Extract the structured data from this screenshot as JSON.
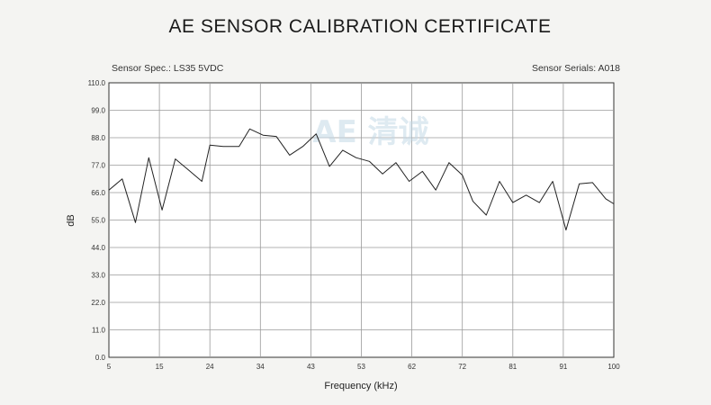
{
  "header": {
    "title": "AE SENSOR CALIBRATION CERTIFICATE",
    "sensor_spec": "Sensor Spec.: LS35 5VDC",
    "sensor_serials": "Sensor Serials: A018"
  },
  "watermark": {
    "text": "AE 清诚"
  },
  "chart_data": {
    "type": "line",
    "xlabel": "Frequency (kHz)",
    "ylabel": "dB",
    "xlim": [
      5,
      100
    ],
    "ylim": [
      0,
      110
    ],
    "grid": true,
    "x_tick_labels": [
      "5",
      "15",
      "24",
      "34",
      "43",
      "53",
      "62",
      "72",
      "81",
      "91",
      "100"
    ],
    "y_tick_labels": [
      "0.0",
      "11.0",
      "22.0",
      "33.0",
      "44.0",
      "55.0",
      "66.0",
      "77.0",
      "88.0",
      "99.0",
      "110.0"
    ],
    "series": [
      {
        "name": "",
        "x": [
          5,
          7.5,
          10,
          12.5,
          15,
          17.5,
          20,
          22.5,
          24,
          26.5,
          29.5,
          31.5,
          34,
          36.5,
          39,
          41.5,
          44,
          46.5,
          49,
          51.5,
          54,
          56.5,
          59,
          61.5,
          64,
          66.5,
          69,
          71.5,
          73.5,
          76,
          78.5,
          81,
          83.5,
          86,
          88.5,
          91,
          93.5,
          96,
          98.5,
          100
        ],
        "y": [
          67,
          71.5,
          54,
          80,
          59,
          79.5,
          75,
          70.5,
          85,
          84.5,
          84.5,
          91.5,
          89,
          88.5,
          81,
          84.5,
          89.5,
          76.5,
          83,
          80,
          78.5,
          73.5,
          78,
          70.5,
          74.5,
          67,
          78,
          73,
          62.5,
          57,
          70.5,
          62,
          65,
          62,
          70.5,
          51,
          69.5,
          70,
          63.5,
          61.5
        ]
      }
    ]
  }
}
